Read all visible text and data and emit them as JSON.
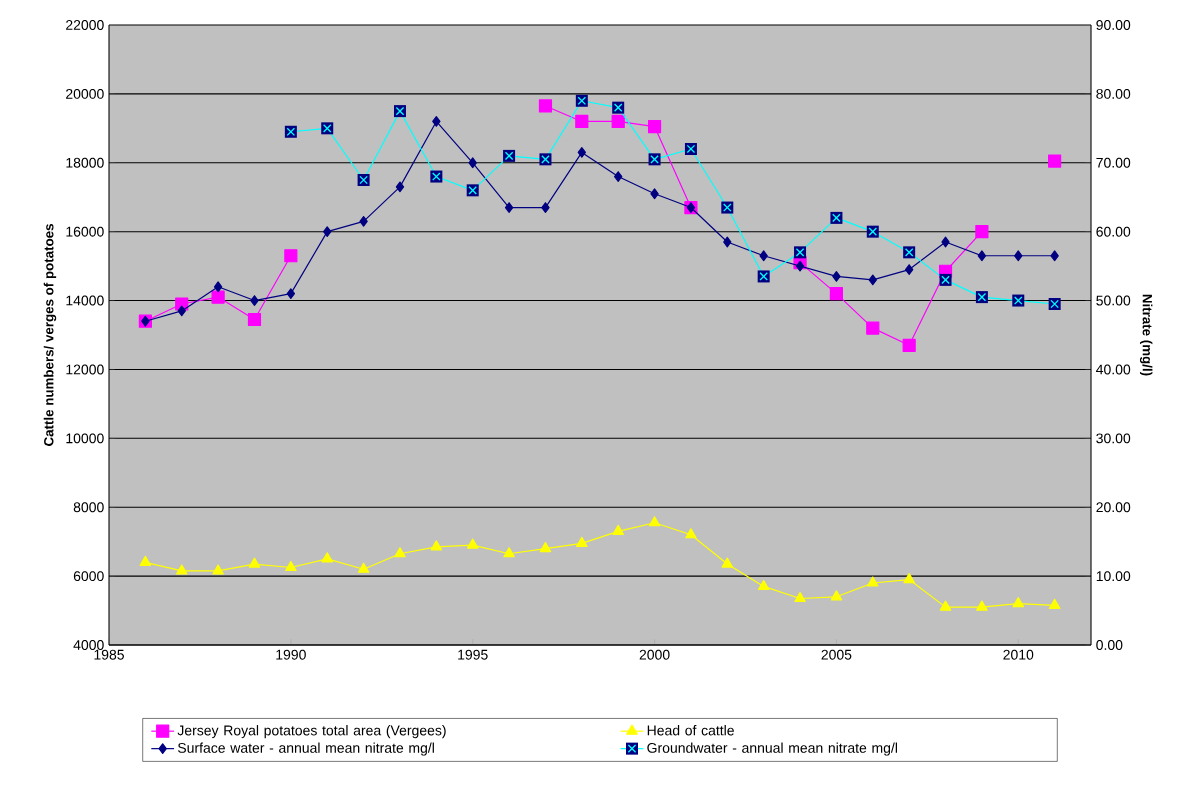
{
  "chart_data": {
    "type": "line",
    "x": [
      1986,
      1987,
      1988,
      1989,
      1990,
      1991,
      1992,
      1993,
      1994,
      1995,
      1996,
      1997,
      1998,
      1999,
      2000,
      2001,
      2002,
      2003,
      2004,
      2005,
      2006,
      2007,
      2008,
      2009,
      2010,
      2011
    ],
    "series": [
      {
        "name": "Jersey Royal potatoes total area (Vergees)",
        "color": "#ff00ff",
        "marker": "square",
        "values": [
          13400,
          13900,
          14100,
          13450,
          15300,
          null,
          null,
          null,
          null,
          null,
          null,
          19650,
          19200,
          19200,
          19050,
          16700,
          null,
          null,
          15100,
          14200,
          13200,
          12700,
          14850,
          16000,
          null,
          18050
        ]
      },
      {
        "name": "Head of cattle",
        "color": "#ffff00",
        "marker": "triangle",
        "values": [
          6400,
          6150,
          6150,
          6350,
          6250,
          6500,
          6200,
          6650,
          6850,
          6900,
          6650,
          6800,
          6950,
          7300,
          7550,
          7200,
          6350,
          5700,
          5350,
          5400,
          5800,
          5900,
          5100,
          5100,
          5200,
          5150
        ]
      },
      {
        "name": "Surface water - annual mean nitrate mg/l",
        "color": "#000080",
        "marker": "diamond",
        "axis": "y2",
        "values": [
          47.0,
          48.5,
          52.0,
          50.0,
          51.0,
          60.0,
          61.5,
          66.5,
          76.0,
          70.0,
          63.5,
          63.5,
          71.5,
          68.0,
          65.5,
          63.5,
          58.5,
          56.5,
          55.0,
          53.5,
          53.0,
          54.5,
          58.5,
          56.5,
          56.5,
          56.5
        ]
      },
      {
        "name": "Groundwater - annual mean nitrate mg/l",
        "color": "#00ffff",
        "marker": "cross",
        "axis": "y2",
        "values": [
          null,
          null,
          null,
          null,
          74.5,
          75.0,
          67.5,
          77.5,
          68.0,
          66.0,
          71.0,
          70.5,
          79.0,
          78.0,
          70.5,
          72.0,
          63.5,
          53.5,
          57.0,
          62.0,
          60.0,
          57.0,
          53.0,
          50.5,
          50.0,
          49.5
        ]
      }
    ],
    "xlim": [
      1985,
      2012
    ],
    "xticks": [
      1985,
      1990,
      1995,
      2000,
      2005,
      2010
    ],
    "ylim": [
      4000,
      22000
    ],
    "yticks": [
      4000,
      6000,
      8000,
      10000,
      12000,
      14000,
      16000,
      18000,
      20000,
      22000
    ],
    "y2lim": [
      0,
      90
    ],
    "y2ticks": [
      {
        "value": 0,
        "label": "0.00"
      },
      {
        "value": 10,
        "label": "10.00"
      },
      {
        "value": 20,
        "label": "20.00"
      },
      {
        "value": 30,
        "label": "30.00"
      },
      {
        "value": 40,
        "label": "40.00"
      },
      {
        "value": 50,
        "label": "50.00"
      },
      {
        "value": 60,
        "label": "60.00"
      },
      {
        "value": 70,
        "label": "70.00"
      },
      {
        "value": 80,
        "label": "80.00"
      },
      {
        "value": 90,
        "label": "90.00"
      }
    ],
    "ylabel": "Cattle numbers/ verges of potatoes",
    "y2label": "Nitrate (mg/l)",
    "grid": "y",
    "legend": "bottom"
  }
}
